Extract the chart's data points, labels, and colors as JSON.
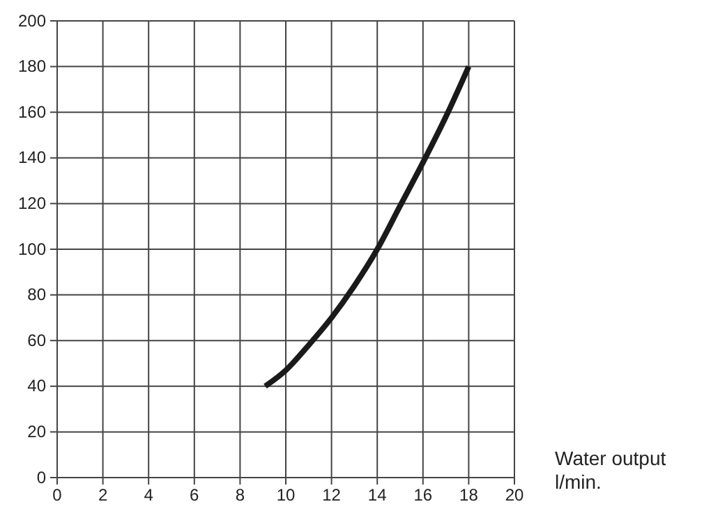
{
  "chart_data": {
    "type": "line",
    "xlabel": "Water output l/min.",
    "x": [
      9.1,
      10,
      11,
      12,
      13,
      14,
      15,
      16,
      17,
      18
    ],
    "series": [
      {
        "color": "#1a1a1a",
        "values": [
          40,
          47,
          58,
          70,
          84,
          100,
          119,
          138,
          158,
          180
        ]
      }
    ],
    "xlim": [
      0,
      20
    ],
    "xticks": [
      0,
      2,
      4,
      6,
      8,
      10,
      12,
      14,
      16,
      18,
      20
    ],
    "ylim": [
      0,
      200
    ],
    "yticks": [
      0,
      20,
      40,
      60,
      80,
      100,
      120,
      140,
      160,
      180,
      200
    ],
    "grid": true
  }
}
